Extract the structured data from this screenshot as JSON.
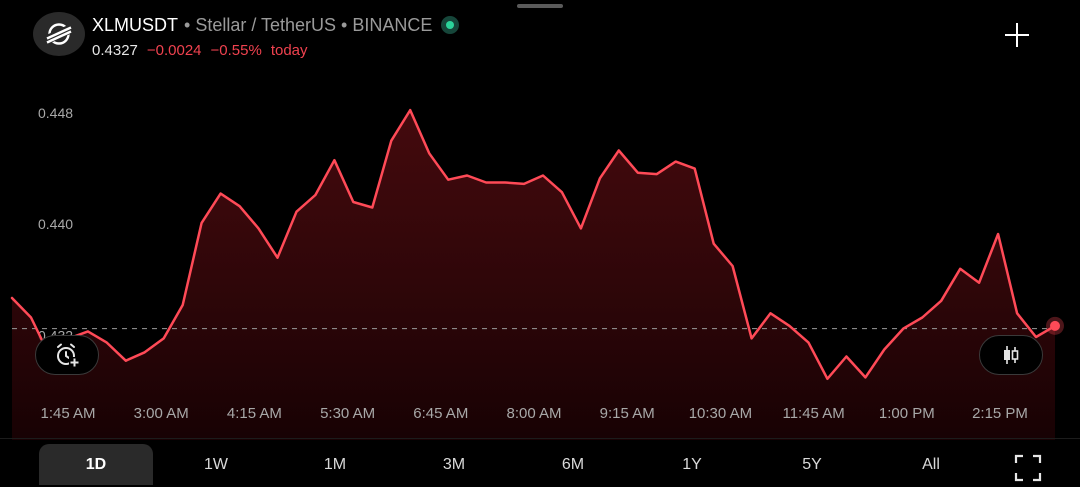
{
  "header": {
    "symbol": "XLMUSDT",
    "description": "• Stellar / TetherUS • BINANCE",
    "logo_icon": "stellar-logo-icon",
    "status_color": "#2bd39a",
    "price": "0.4327",
    "change": "−0.0024",
    "change_pct": "−0.55%",
    "period": "today"
  },
  "colors": {
    "line": "#ff4a57",
    "accent_down": "#f0424f",
    "background": "#000000"
  },
  "chart_data": {
    "type": "area",
    "yticks": [
      "0.448",
      "0.440",
      "0.432"
    ],
    "ylim": [
      0.4245,
      0.4518
    ],
    "reference_value": 0.4325,
    "xticks": [
      "1:45 AM",
      "3:00 AM",
      "4:15 AM",
      "5:30 AM",
      "6:45 AM",
      "8:00 AM",
      "9:15 AM",
      "10:30 AM",
      "11:45 AM",
      "1:00 PM",
      "2:15 PM"
    ],
    "x_start": "1:19 AM",
    "x_step_minutes": 15,
    "values": [
      0.4347,
      0.4333,
      0.4305,
      0.4318,
      0.4323,
      0.4315,
      0.4302,
      0.4308,
      0.4318,
      0.4342,
      0.4401,
      0.4422,
      0.4413,
      0.4397,
      0.4376,
      0.4409,
      0.4421,
      0.4446,
      0.4416,
      0.4412,
      0.446,
      0.4482,
      0.4451,
      0.4432,
      0.4435,
      0.443,
      0.443,
      0.4429,
      0.4435,
      0.4423,
      0.4397,
      0.4433,
      0.4453,
      0.4437,
      0.4436,
      0.4445,
      0.444,
      0.4386,
      0.437,
      0.4318,
      0.4336,
      0.4327,
      0.4315,
      0.4289,
      0.4305,
      0.429,
      0.431,
      0.4325,
      0.4333,
      0.4345,
      0.4368,
      0.4358,
      0.4393,
      0.4336,
      0.4319,
      0.4327
    ]
  },
  "controls": {
    "alert_icon": "alarm-plus-icon",
    "chart_style_icon": "candlestick-icon",
    "plus_icon": "plus-icon",
    "fullscreen_icon": "fullscreen-icon"
  },
  "tabs": [
    {
      "label": "1D",
      "active": true
    },
    {
      "label": "1W",
      "active": false
    },
    {
      "label": "1M",
      "active": false
    },
    {
      "label": "3M",
      "active": false
    },
    {
      "label": "6M",
      "active": false
    },
    {
      "label": "1Y",
      "active": false
    },
    {
      "label": "5Y",
      "active": false
    },
    {
      "label": "All",
      "active": false
    }
  ]
}
